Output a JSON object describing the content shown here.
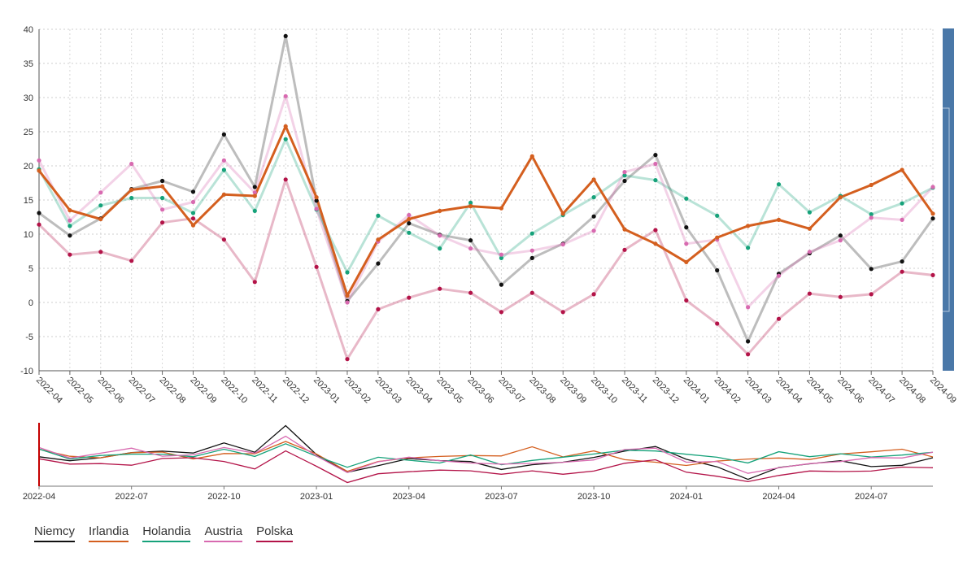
{
  "chart_data": [
    {
      "type": "line",
      "x": [
        "2022-04",
        "2022-05",
        "2022-06",
        "2022-07",
        "2022-08",
        "2022-09",
        "2022-10",
        "2022-11",
        "2022-12",
        "2023-01",
        "2023-02",
        "2023-03",
        "2023-04",
        "2023-05",
        "2023-06",
        "2023-07",
        "2023-08",
        "2023-09",
        "2023-10",
        "2023-11",
        "2023-12",
        "2024-01",
        "2024-02",
        "2024-03",
        "2024-04",
        "2024-05",
        "2024-06",
        "2024-07",
        "2024-08",
        "2024-09"
      ],
      "ylim": [
        -10,
        40
      ],
      "yticks": [
        40,
        35,
        30,
        25,
        20,
        15,
        10,
        5,
        0,
        -5,
        -10
      ],
      "grid": true,
      "highlighted_series": "Irlandia",
      "series": [
        {
          "name": "Niemcy",
          "color": "#111111",
          "values": [
            13.1,
            9.8,
            12.3,
            16.6,
            17.8,
            16.2,
            24.6,
            16.9,
            39.0,
            14.9,
            0.2,
            5.7,
            11.6,
            9.9,
            9.1,
            2.6,
            6.5,
            8.6,
            12.6,
            17.8,
            21.6,
            11.0,
            4.7,
            -5.7,
            4.2,
            7.2,
            9.8,
            4.9,
            6.0,
            12.3
          ]
        },
        {
          "name": "Irlandia",
          "color": "#d45f1f",
          "values": [
            19.3,
            13.5,
            12.2,
            16.5,
            17.0,
            11.3,
            15.8,
            15.6,
            25.8,
            15.4,
            1.0,
            9.2,
            12.2,
            13.4,
            14.1,
            13.8,
            21.4,
            13.0,
            18.0,
            10.7,
            8.6,
            5.9,
            9.5,
            11.2,
            12.1,
            10.8,
            15.4,
            17.2,
            19.4,
            13.0
          ]
        },
        {
          "name": "Holandia",
          "color": "#16a27a",
          "values": [
            19.5,
            11.2,
            14.2,
            15.3,
            15.3,
            13.1,
            19.4,
            13.4,
            23.9,
            13.6,
            4.4,
            12.7,
            10.2,
            7.9,
            14.6,
            6.5,
            10.1,
            12.8,
            15.4,
            18.6,
            17.9,
            15.2,
            12.7,
            8.0,
            17.3,
            13.2,
            15.6,
            12.9,
            14.5,
            16.8
          ]
        },
        {
          "name": "Austria",
          "color": "#d86ab0",
          "values": [
            20.8,
            12.0,
            16.1,
            20.3,
            13.6,
            14.7,
            20.8,
            16.1,
            30.2,
            13.7,
            0.0,
            8.9,
            12.8,
            9.8,
            7.9,
            7.0,
            7.6,
            8.5,
            10.5,
            19.1,
            20.3,
            8.6,
            9.2,
            -0.7,
            3.9,
            7.4,
            9.1,
            12.4,
            12.1,
            16.9
          ]
        },
        {
          "name": "Polska",
          "color": "#b31348",
          "values": [
            11.4,
            7.0,
            7.4,
            6.1,
            11.7,
            12.3,
            9.2,
            3.0,
            18.0,
            5.2,
            -8.3,
            -1.0,
            0.7,
            2.0,
            1.4,
            -1.4,
            1.4,
            -1.4,
            1.2,
            7.7,
            10.6,
            0.3,
            -3.1,
            -7.6,
            -2.4,
            1.3,
            0.8,
            1.2,
            4.5,
            4.0
          ]
        }
      ]
    },
    {
      "type": "line",
      "role": "navigator",
      "xticks": [
        "2022-04",
        "2022-07",
        "2022-10",
        "2023-01",
        "2023-04",
        "2023-07",
        "2023-10",
        "2024-01",
        "2024-04",
        "2024-07"
      ]
    }
  ],
  "legend": {
    "items": [
      {
        "label": "Niemcy",
        "color": "#111111"
      },
      {
        "label": "Irlandia",
        "color": "#d45f1f"
      },
      {
        "label": "Holandia",
        "color": "#16a27a"
      },
      {
        "label": "Austria",
        "color": "#d86ab0"
      },
      {
        "label": "Polska",
        "color": "#b31348"
      }
    ]
  },
  "scrollbar_color": "#4a78a8"
}
